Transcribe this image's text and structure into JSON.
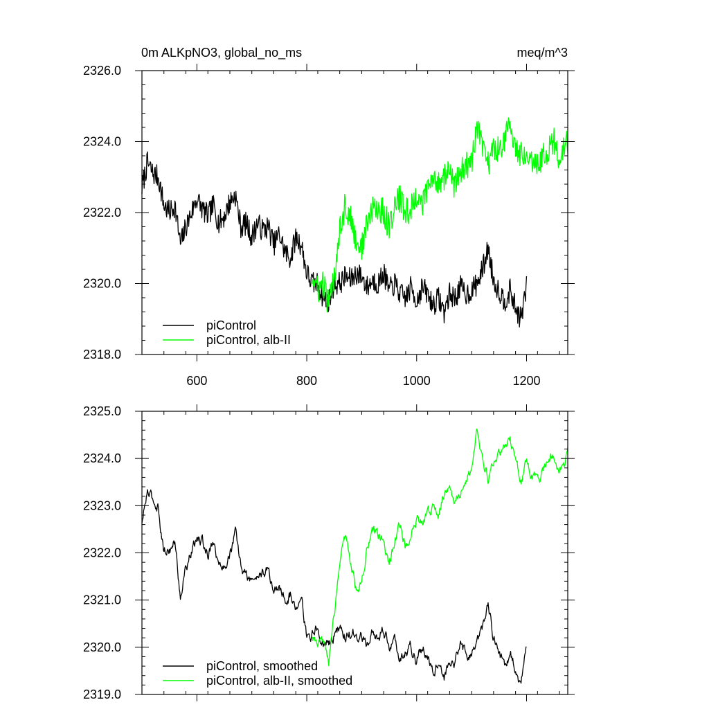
{
  "chart_data": [
    {
      "type": "line",
      "title_left": "0m ALKpNO3, global_no_ms",
      "title_right": "meq/m^3",
      "xlim": [
        500,
        1275
      ],
      "ylim": [
        2318.0,
        2326.0
      ],
      "x_ticks": [
        600,
        800,
        1000,
        1200
      ],
      "x_tick_labels": [
        "600",
        "800",
        "1000",
        "1200"
      ],
      "y_ticks": [
        2318.0,
        2320.0,
        2322.0,
        2324.0,
        2326.0
      ],
      "y_tick_labels": [
        "2318.0",
        "2320.0",
        "2322.0",
        "2324.0",
        "2326.0"
      ],
      "legend_location": "bottom-left",
      "series": [
        {
          "name": "piControl",
          "color": "#000000",
          "x_range": [
            500,
            1200
          ],
          "anchors": [
            [
              500,
              2322.7
            ],
            [
              510,
              2323.4
            ],
            [
              520,
              2323.1
            ],
            [
              530,
              2323.0
            ],
            [
              540,
              2322.2
            ],
            [
              550,
              2322.0
            ],
            [
              560,
              2322.2
            ],
            [
              570,
              2321.1
            ],
            [
              580,
              2321.6
            ],
            [
              590,
              2322.0
            ],
            [
              600,
              2322.4
            ],
            [
              610,
              2322.1
            ],
            [
              620,
              2321.9
            ],
            [
              630,
              2322.2
            ],
            [
              640,
              2321.7
            ],
            [
              650,
              2321.9
            ],
            [
              660,
              2322.3
            ],
            [
              670,
              2322.5
            ],
            [
              680,
              2321.6
            ],
            [
              690,
              2321.7
            ],
            [
              700,
              2321.3
            ],
            [
              710,
              2321.7
            ],
            [
              720,
              2321.5
            ],
            [
              730,
              2321.6
            ],
            [
              740,
              2321.1
            ],
            [
              750,
              2321.4
            ],
            [
              760,
              2320.9
            ],
            [
              770,
              2320.7
            ],
            [
              780,
              2321.3
            ],
            [
              790,
              2321.1
            ],
            [
              800,
              2320.3
            ],
            [
              810,
              2320.0
            ],
            [
              820,
              2320.0
            ],
            [
              830,
              2319.6
            ],
            [
              840,
              2319.5
            ],
            [
              850,
              2320.0
            ],
            [
              860,
              2320.0
            ],
            [
              870,
              2320.2
            ],
            [
              880,
              2320.1
            ],
            [
              890,
              2320.3
            ],
            [
              900,
              2320.2
            ],
            [
              910,
              2319.9
            ],
            [
              920,
              2320.1
            ],
            [
              930,
              2320.0
            ],
            [
              940,
              2320.3
            ],
            [
              950,
              2319.8
            ],
            [
              960,
              2320.0
            ],
            [
              970,
              2319.7
            ],
            [
              980,
              2319.6
            ],
            [
              990,
              2319.9
            ],
            [
              1000,
              2319.5
            ],
            [
              1010,
              2319.9
            ],
            [
              1020,
              2319.7
            ],
            [
              1030,
              2319.4
            ],
            [
              1040,
              2319.6
            ],
            [
              1050,
              2319.2
            ],
            [
              1060,
              2319.7
            ],
            [
              1070,
              2319.6
            ],
            [
              1080,
              2319.9
            ],
            [
              1090,
              2319.7
            ],
            [
              1100,
              2319.8
            ],
            [
              1110,
              2320.0
            ],
            [
              1120,
              2320.4
            ],
            [
              1130,
              2321.0
            ],
            [
              1140,
              2320.1
            ],
            [
              1150,
              2319.8
            ],
            [
              1160,
              2319.5
            ],
            [
              1170,
              2319.8
            ],
            [
              1180,
              2319.3
            ],
            [
              1190,
              2319.0
            ],
            [
              1200,
              2319.9
            ]
          ],
          "noise_amplitude": 0.33
        },
        {
          "name": "piControl, alb-II",
          "color": "#00ff00",
          "x_range": [
            810,
            1275
          ],
          "anchors": [
            [
              810,
              2320.2
            ],
            [
              820,
              2319.8
            ],
            [
              830,
              2320.0
            ],
            [
              840,
              2319.4
            ],
            [
              850,
              2320.2
            ],
            [
              860,
              2321.6
            ],
            [
              870,
              2322.2
            ],
            [
              880,
              2321.8
            ],
            [
              890,
              2321.2
            ],
            [
              900,
              2321.0
            ],
            [
              910,
              2321.7
            ],
            [
              920,
              2322.1
            ],
            [
              930,
              2322.1
            ],
            [
              940,
              2322.0
            ],
            [
              950,
              2321.6
            ],
            [
              960,
              2322.2
            ],
            [
              970,
              2322.4
            ],
            [
              980,
              2322.0
            ],
            [
              990,
              2322.1
            ],
            [
              1000,
              2322.5
            ],
            [
              1010,
              2322.2
            ],
            [
              1020,
              2322.7
            ],
            [
              1030,
              2322.9
            ],
            [
              1040,
              2322.9
            ],
            [
              1050,
              2323.0
            ],
            [
              1060,
              2323.2
            ],
            [
              1070,
              2322.7
            ],
            [
              1080,
              2323.2
            ],
            [
              1090,
              2323.3
            ],
            [
              1100,
              2323.4
            ],
            [
              1110,
              2324.4
            ],
            [
              1120,
              2323.8
            ],
            [
              1130,
              2323.4
            ],
            [
              1140,
              2323.8
            ],
            [
              1150,
              2323.8
            ],
            [
              1160,
              2324.1
            ],
            [
              1170,
              2324.4
            ],
            [
              1180,
              2323.9
            ],
            [
              1190,
              2323.6
            ],
            [
              1200,
              2323.8
            ],
            [
              1210,
              2323.5
            ],
            [
              1220,
              2323.4
            ],
            [
              1230,
              2323.6
            ],
            [
              1240,
              2323.8
            ],
            [
              1250,
              2324.0
            ],
            [
              1260,
              2323.5
            ],
            [
              1270,
              2323.8
            ],
            [
              1275,
              2324.0
            ]
          ],
          "noise_amplitude": 0.4
        }
      ]
    },
    {
      "type": "line",
      "xlim": [
        500,
        1275
      ],
      "ylim": [
        2319.0,
        2325.0
      ],
      "x_ticks": [
        600,
        800,
        1000,
        1200
      ],
      "y_ticks": [
        2319.0,
        2320.0,
        2321.0,
        2322.0,
        2323.0,
        2324.0,
        2325.0
      ],
      "y_tick_labels": [
        "2319.0",
        "2320.0",
        "2321.0",
        "2322.0",
        "2323.0",
        "2324.0",
        "2325.0"
      ],
      "legend_location": "bottom-left",
      "series": [
        {
          "name": "piControl, smoothed",
          "color": "#000000",
          "x_range": [
            500,
            1200
          ],
          "anchors": [
            [
              500,
              2322.6
            ],
            [
              510,
              2323.3
            ],
            [
              520,
              2323.1
            ],
            [
              530,
              2323.0
            ],
            [
              540,
              2322.0
            ],
            [
              550,
              2322.1
            ],
            [
              560,
              2322.2
            ],
            [
              570,
              2321.1
            ],
            [
              580,
              2321.7
            ],
            [
              590,
              2322.0
            ],
            [
              600,
              2322.3
            ],
            [
              610,
              2322.2
            ],
            [
              620,
              2322.0
            ],
            [
              630,
              2322.3
            ],
            [
              640,
              2321.7
            ],
            [
              650,
              2321.7
            ],
            [
              660,
              2322.0
            ],
            [
              670,
              2322.4
            ],
            [
              680,
              2321.7
            ],
            [
              690,
              2321.5
            ],
            [
              700,
              2321.4
            ],
            [
              710,
              2321.5
            ],
            [
              720,
              2321.6
            ],
            [
              730,
              2321.6
            ],
            [
              740,
              2321.2
            ],
            [
              750,
              2321.3
            ],
            [
              760,
              2321.0
            ],
            [
              770,
              2321.1
            ],
            [
              780,
              2320.9
            ],
            [
              790,
              2321.2
            ],
            [
              800,
              2320.2
            ],
            [
              810,
              2320.3
            ],
            [
              820,
              2320.4
            ],
            [
              830,
              2320.1
            ],
            [
              840,
              2320.1
            ],
            [
              850,
              2320.3
            ],
            [
              860,
              2320.4
            ],
            [
              870,
              2320.2
            ],
            [
              880,
              2320.3
            ],
            [
              890,
              2320.3
            ],
            [
              900,
              2320.2
            ],
            [
              910,
              2320.0
            ],
            [
              920,
              2320.3
            ],
            [
              930,
              2320.2
            ],
            [
              940,
              2320.4
            ],
            [
              950,
              2320.0
            ],
            [
              960,
              2320.1
            ],
            [
              970,
              2319.8
            ],
            [
              980,
              2319.9
            ],
            [
              990,
              2320.0
            ],
            [
              1000,
              2319.7
            ],
            [
              1010,
              2320.0
            ],
            [
              1020,
              2319.8
            ],
            [
              1030,
              2319.5
            ],
            [
              1040,
              2319.8
            ],
            [
              1050,
              2319.3
            ],
            [
              1060,
              2319.8
            ],
            [
              1070,
              2319.7
            ],
            [
              1080,
              2320.0
            ],
            [
              1090,
              2319.9
            ],
            [
              1100,
              2319.9
            ],
            [
              1110,
              2320.0
            ],
            [
              1120,
              2320.4
            ],
            [
              1130,
              2321.0
            ],
            [
              1140,
              2320.2
            ],
            [
              1150,
              2319.9
            ],
            [
              1160,
              2319.6
            ],
            [
              1170,
              2319.9
            ],
            [
              1180,
              2319.6
            ],
            [
              1190,
              2319.2
            ],
            [
              1200,
              2320.0
            ]
          ],
          "noise_amplitude": 0.18
        },
        {
          "name": "piControl, alb-II, smoothed",
          "color": "#00ff00",
          "x_range": [
            810,
            1275
          ],
          "anchors": [
            [
              810,
              2320.2
            ],
            [
              820,
              2320.0
            ],
            [
              830,
              2320.1
            ],
            [
              840,
              2319.7
            ],
            [
              850,
              2320.6
            ],
            [
              860,
              2321.9
            ],
            [
              870,
              2322.3
            ],
            [
              880,
              2321.8
            ],
            [
              890,
              2321.3
            ],
            [
              900,
              2321.3
            ],
            [
              910,
              2322.1
            ],
            [
              920,
              2322.4
            ],
            [
              930,
              2322.3
            ],
            [
              940,
              2322.3
            ],
            [
              950,
              2321.7
            ],
            [
              960,
              2322.3
            ],
            [
              970,
              2322.6
            ],
            [
              980,
              2322.1
            ],
            [
              990,
              2322.4
            ],
            [
              1000,
              2322.7
            ],
            [
              1010,
              2322.6
            ],
            [
              1020,
              2322.8
            ],
            [
              1030,
              2323.0
            ],
            [
              1040,
              2322.8
            ],
            [
              1050,
              2323.3
            ],
            [
              1060,
              2323.5
            ],
            [
              1070,
              2323.1
            ],
            [
              1080,
              2323.3
            ],
            [
              1090,
              2323.5
            ],
            [
              1100,
              2323.7
            ],
            [
              1110,
              2324.6
            ],
            [
              1120,
              2324.0
            ],
            [
              1130,
              2323.6
            ],
            [
              1140,
              2324.0
            ],
            [
              1150,
              2324.1
            ],
            [
              1160,
              2324.3
            ],
            [
              1170,
              2324.4
            ],
            [
              1180,
              2323.9
            ],
            [
              1190,
              2323.6
            ],
            [
              1200,
              2323.9
            ],
            [
              1210,
              2323.6
            ],
            [
              1220,
              2323.5
            ],
            [
              1230,
              2323.7
            ],
            [
              1240,
              2323.9
            ],
            [
              1250,
              2324.1
            ],
            [
              1260,
              2323.7
            ],
            [
              1270,
              2323.9
            ],
            [
              1275,
              2324.1
            ]
          ],
          "noise_amplitude": 0.17
        }
      ]
    }
  ]
}
